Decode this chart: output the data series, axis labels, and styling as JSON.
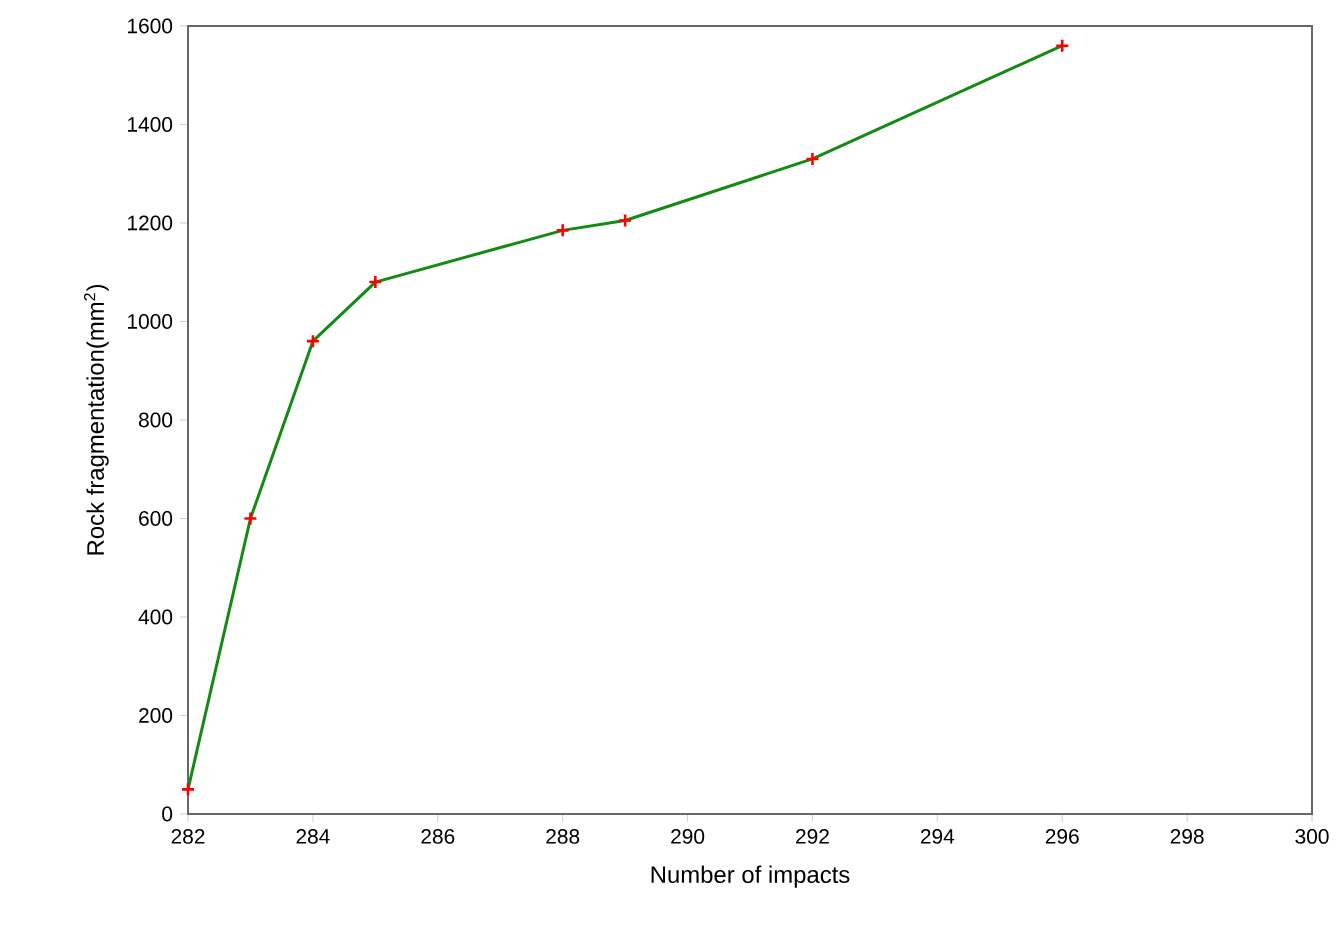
{
  "chart_data": {
    "type": "line",
    "xlabel": "Number of impacts",
    "ylabel": "Rock fragmentation(mm$^{2}$)",
    "x": [
      282,
      283,
      284,
      285,
      288,
      289,
      292,
      296
    ],
    "series": [
      {
        "color": "#138a13",
        "values": [
          50,
          600,
          960,
          1080,
          1185,
          1205,
          1330,
          1560
        ]
      }
    ],
    "xlim": [
      282,
      300
    ],
    "xticks": [
      282,
      284,
      286,
      288,
      290,
      292,
      294,
      296,
      298,
      300
    ],
    "ylim": [
      0,
      1600
    ],
    "yticks": [
      0,
      200,
      400,
      600,
      800,
      1000,
      1200,
      1400,
      1600
    ],
    "marker": "cross",
    "line_style": "solid"
  }
}
